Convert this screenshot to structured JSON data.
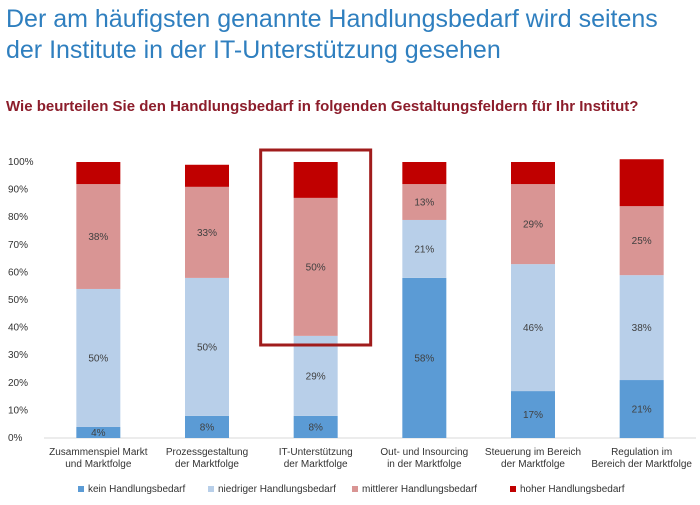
{
  "header": {
    "title_line1": "Der am häufigsten genannte Handlungsbedarf wird seitens",
    "title_line2": "der Institute in der IT-Unterstützung gesehen",
    "subtitle": "Wie beurteilen Sie den Handlungsbedarf in folgenden Gestaltungsfeldern für Ihr Institut?"
  },
  "chart_data": {
    "type": "bar",
    "stacked": true,
    "y_ticks": [
      "0%",
      "10%",
      "20%",
      "30%",
      "40%",
      "50%",
      "60%",
      "70%",
      "80%",
      "90%",
      "100%"
    ],
    "ylim": [
      0,
      100
    ],
    "categories": [
      [
        "Zusammenspiel Markt",
        "und Marktfolge"
      ],
      [
        "Prozessgestaltung",
        "der Marktfolge"
      ],
      [
        "IT-Unterstützung",
        "der Marktfolge"
      ],
      [
        "Out- und Insourcing",
        "in der Marktfolge"
      ],
      [
        "Steuerung im Bereich",
        "der Marktfolge"
      ],
      [
        "Regulation im",
        "Bereich der Marktfolge"
      ]
    ],
    "series": [
      {
        "name": "kein Handlungsbedarf",
        "color": "#5b9bd5",
        "values": [
          4,
          8,
          8,
          58,
          17,
          21
        ],
        "labels": [
          "4%",
          "8%",
          "8%",
          "58%",
          "17%",
          "21%"
        ]
      },
      {
        "name": "niedriger Handlungsbedarf",
        "color": "#b8cfe9",
        "values": [
          50,
          50,
          29,
          21,
          46,
          38
        ],
        "labels": [
          "50%",
          "50%",
          "29%",
          "21%",
          "46%",
          "38%"
        ]
      },
      {
        "name": "mittlerer Handlungsbedarf",
        "color": "#d99594",
        "values": [
          38,
          33,
          50,
          13,
          29,
          25
        ],
        "labels": [
          "38%",
          "33%",
          "50%",
          "13%",
          "29%",
          "25%"
        ]
      },
      {
        "name": "hoher Handlungsbedarf",
        "color": "#c00000",
        "values": [
          8,
          8,
          13,
          8,
          8,
          17
        ],
        "labels": [
          "",
          "",
          "",
          "",
          "",
          ""
        ]
      }
    ],
    "highlighted_category_index": 2,
    "highlight_color": "#a01c1c",
    "legend_position": "bottom",
    "grid": false
  }
}
